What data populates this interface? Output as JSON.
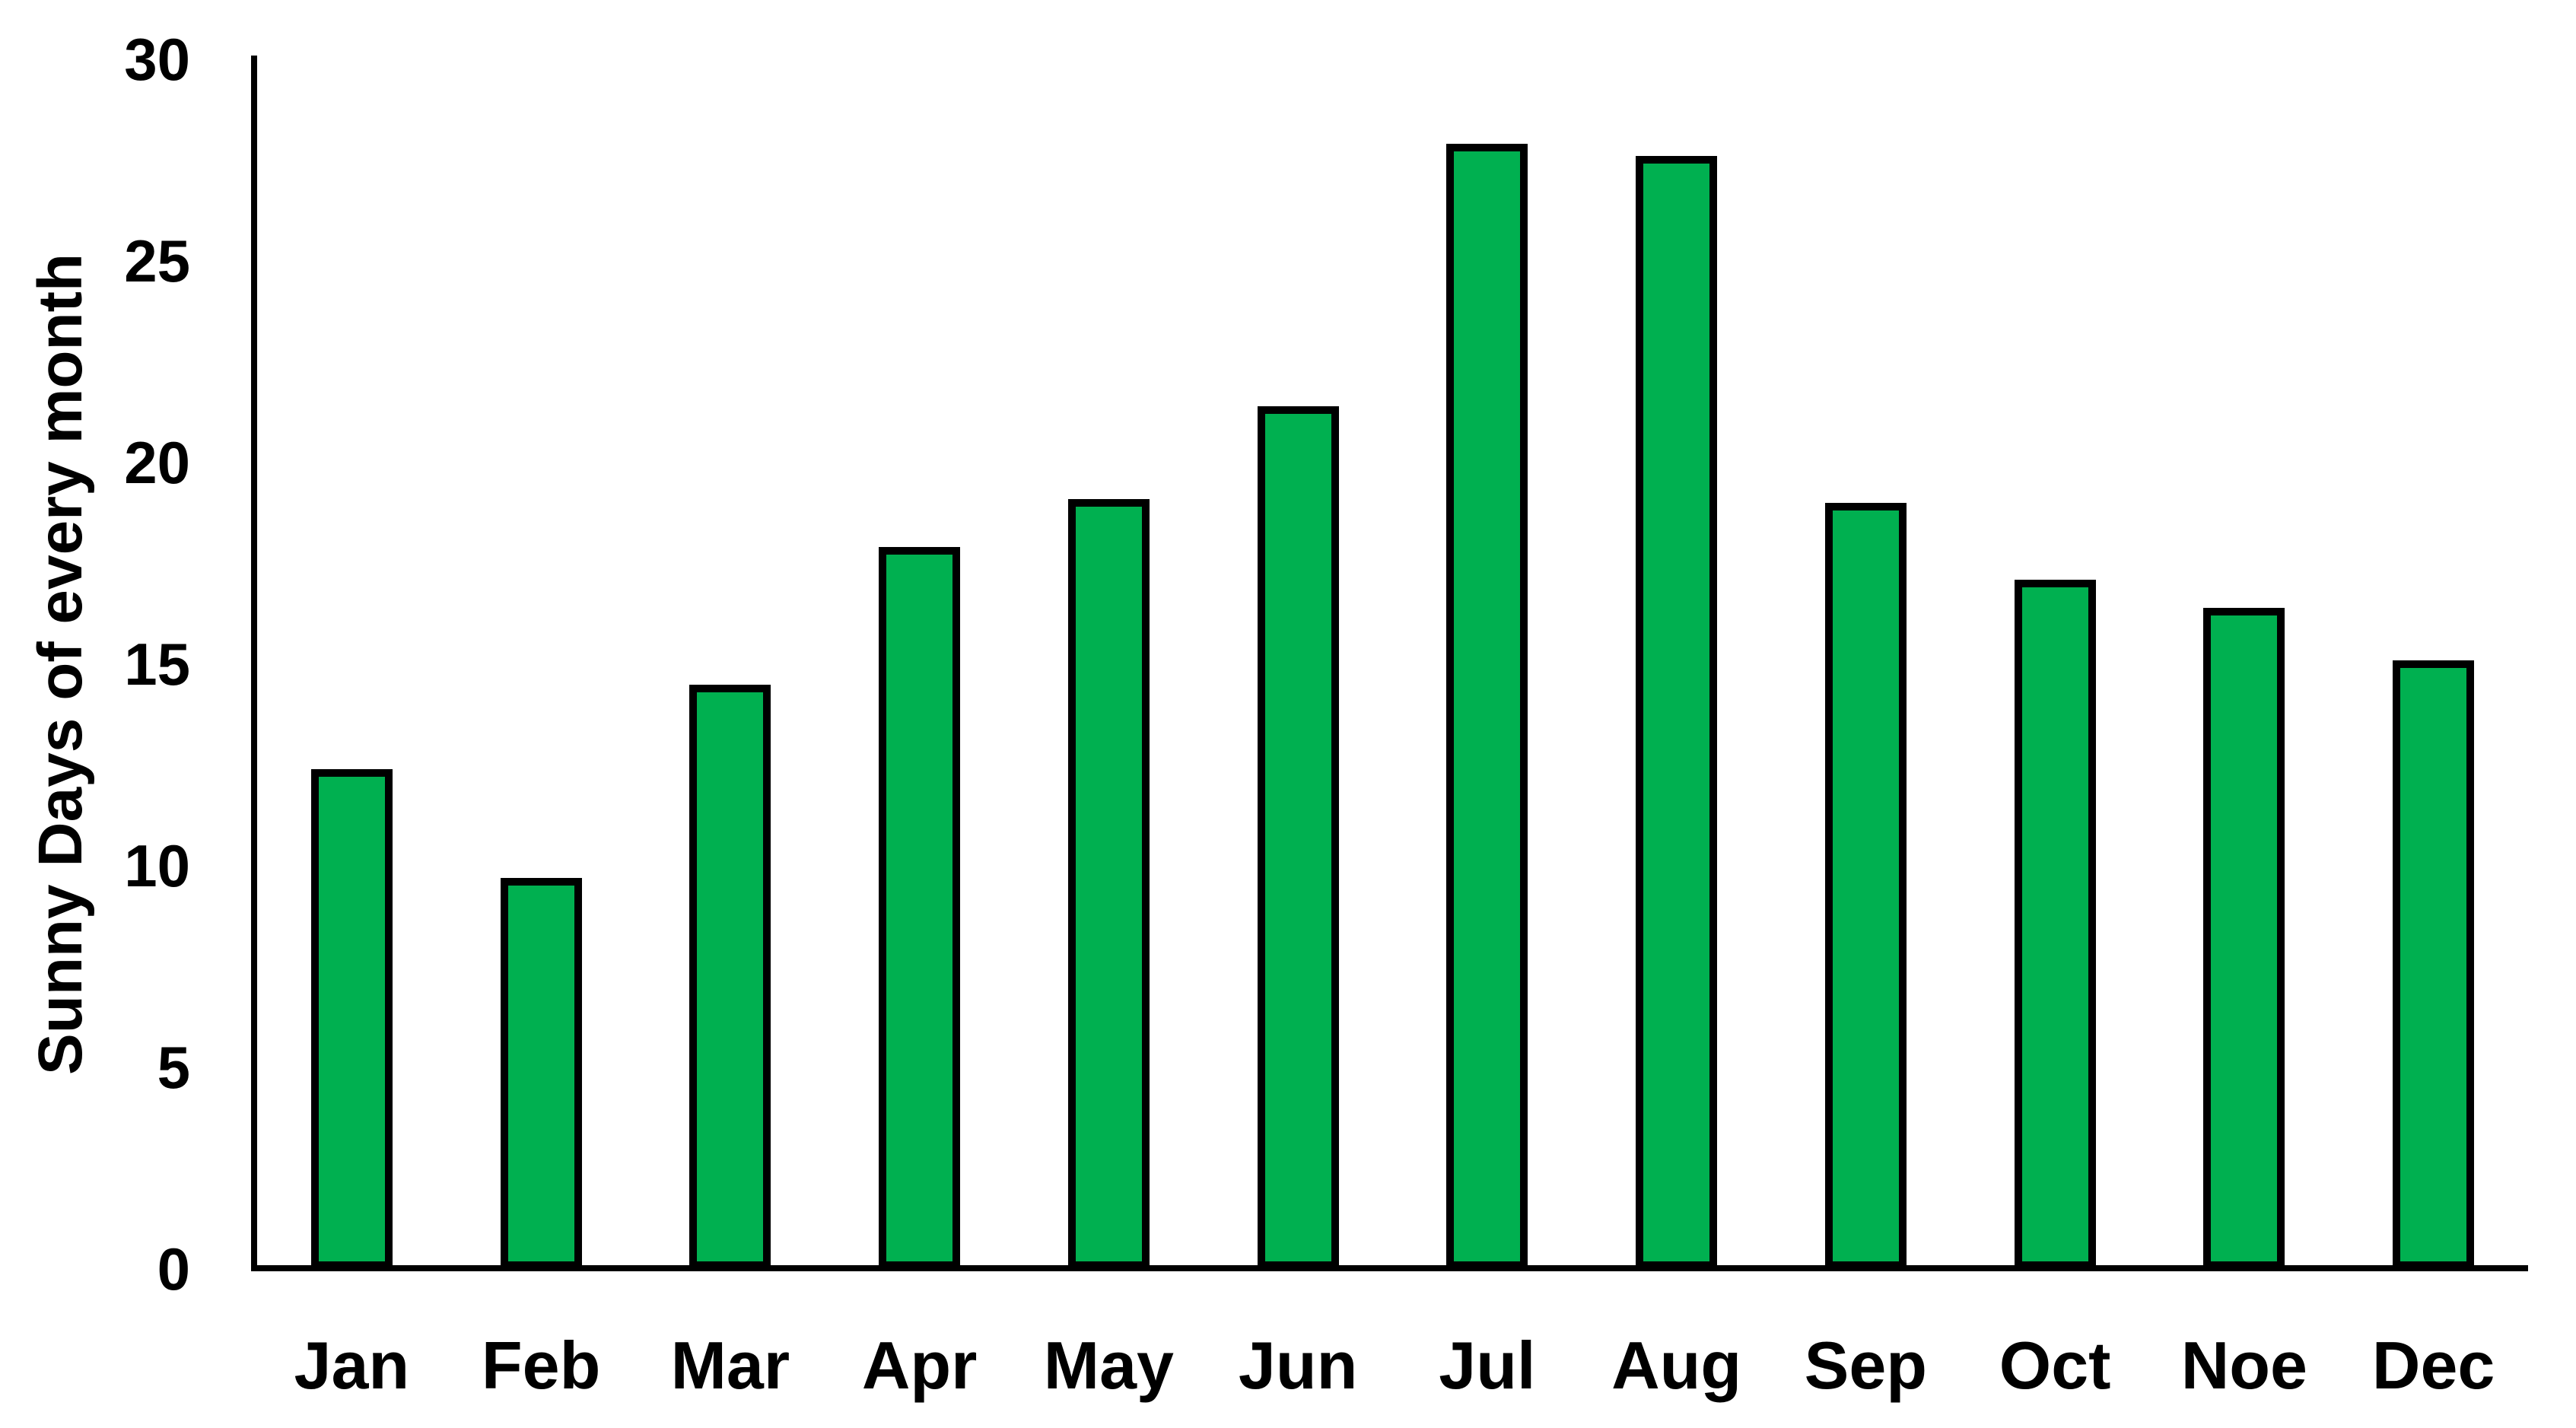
{
  "chart_data": {
    "type": "bar",
    "title": "",
    "categories": [
      "Jan",
      "Feb",
      "Mar",
      "Apr",
      "May",
      "Jun",
      "Jul",
      "Aug",
      "Sep",
      "Oct",
      "Noe",
      "Dec"
    ],
    "values": [
      12.4,
      9.7,
      14.5,
      17.9,
      19.1,
      21.4,
      27.9,
      27.6,
      19.0,
      17.1,
      16.4,
      15.1
    ],
    "xlabel": "",
    "ylabel": "Sunny Days of every month",
    "ylim": [
      0,
      30
    ],
    "yticks": [
      0,
      5,
      10,
      15,
      20,
      25,
      30
    ],
    "grid": false,
    "legend": false,
    "bar_fill": "#00B050",
    "bar_border": "#000000",
    "axis_color": "#000000",
    "text_color": "#000000",
    "background": "#FFFFFF"
  }
}
